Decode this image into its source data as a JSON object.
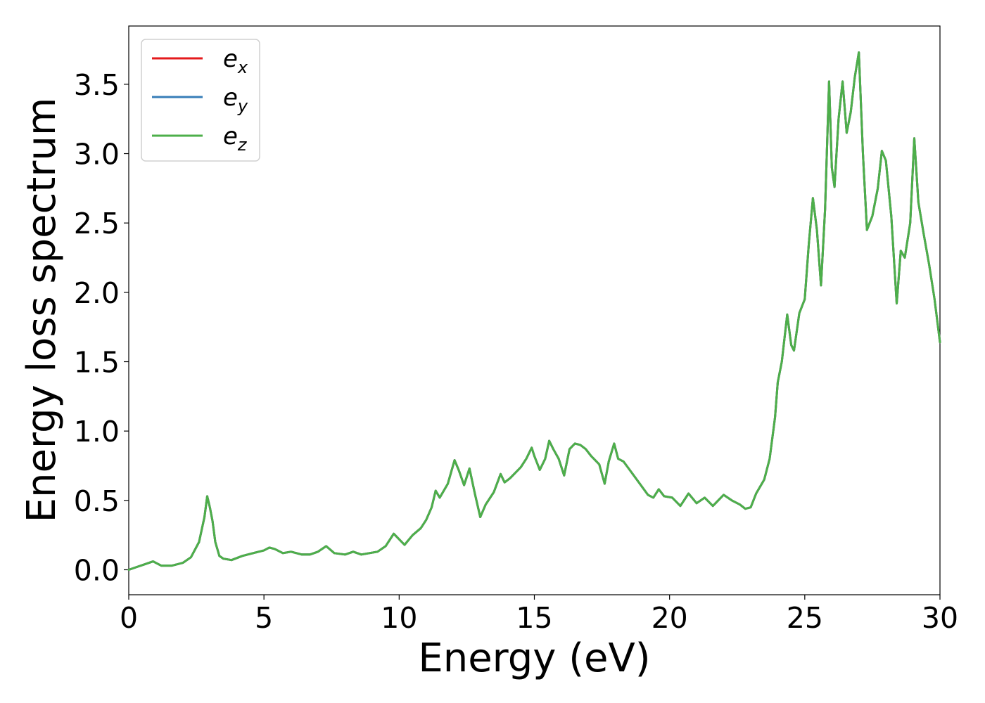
{
  "chart_data": {
    "type": "line",
    "title": "",
    "xlabel": "Energy (eV)",
    "ylabel": "Energy loss spectrum",
    "xlim": [
      0,
      30
    ],
    "ylim": [
      -0.18,
      3.92
    ],
    "x_ticks": [
      "0",
      "5",
      "10",
      "15",
      "20",
      "25",
      "30"
    ],
    "x_tick_values": [
      0,
      5,
      10,
      15,
      20,
      25,
      30
    ],
    "y_ticks": [
      "0.0",
      "0.5",
      "1.0",
      "1.5",
      "2.0",
      "2.5",
      "3.0",
      "3.5"
    ],
    "y_tick_values": [
      0,
      0.5,
      1.0,
      1.5,
      2.0,
      2.5,
      3.0,
      3.5
    ],
    "grid": false,
    "legend_position": "top-left",
    "series": [
      {
        "name": "e_x",
        "label_base": "e",
        "label_sub": "x",
        "color": "#e41a1c"
      },
      {
        "name": "e_y",
        "label_base": "e",
        "label_sub": "y",
        "color": "#377eb8"
      },
      {
        "name": "e_z",
        "label_base": "e",
        "label_sub": "z",
        "color": "#4daf4a"
      }
    ],
    "x": [
      0,
      0.3,
      0.6,
      0.9,
      1.0,
      1.2,
      1.6,
      2.0,
      2.3,
      2.6,
      2.8,
      2.9,
      3.0,
      3.1,
      3.2,
      3.35,
      3.5,
      3.8,
      4.2,
      4.6,
      5.0,
      5.2,
      5.4,
      5.7,
      6.0,
      6.2,
      6.4,
      6.7,
      7.0,
      7.3,
      7.6,
      8.0,
      8.3,
      8.6,
      8.9,
      9.2,
      9.5,
      9.8,
      10.2,
      10.5,
      10.8,
      11.0,
      11.2,
      11.35,
      11.5,
      11.8,
      12.05,
      12.2,
      12.4,
      12.6,
      12.8,
      13.0,
      13.2,
      13.5,
      13.75,
      13.9,
      14.1,
      14.3,
      14.5,
      14.7,
      14.9,
      15.0,
      15.2,
      15.4,
      15.55,
      15.7,
      15.9,
      16.1,
      16.3,
      16.5,
      16.7,
      16.9,
      17.1,
      17.4,
      17.6,
      17.75,
      17.95,
      18.1,
      18.3,
      18.6,
      18.9,
      19.2,
      19.4,
      19.6,
      19.8,
      20.1,
      20.4,
      20.7,
      21.0,
      21.3,
      21.6,
      22.0,
      22.3,
      22.6,
      22.8,
      23.0,
      23.2,
      23.5,
      23.7,
      23.9,
      24.0,
      24.15,
      24.35,
      24.5,
      24.6,
      24.8,
      25.0,
      25.15,
      25.3,
      25.45,
      25.6,
      25.75,
      25.9,
      26.0,
      26.1,
      26.25,
      26.4,
      26.55,
      26.7,
      26.85,
      27.0,
      27.15,
      27.3,
      27.5,
      27.7,
      27.85,
      28.0,
      28.2,
      28.4,
      28.55,
      28.7,
      28.9,
      29.05,
      29.2,
      29.4,
      29.6,
      29.8,
      30.0
    ],
    "y": [
      0.0,
      0.02,
      0.04,
      0.06,
      0.05,
      0.03,
      0.03,
      0.05,
      0.09,
      0.2,
      0.38,
      0.53,
      0.45,
      0.35,
      0.2,
      0.1,
      0.08,
      0.07,
      0.1,
      0.12,
      0.14,
      0.16,
      0.15,
      0.12,
      0.13,
      0.12,
      0.11,
      0.11,
      0.13,
      0.17,
      0.12,
      0.11,
      0.13,
      0.11,
      0.12,
      0.13,
      0.17,
      0.26,
      0.18,
      0.25,
      0.3,
      0.36,
      0.45,
      0.57,
      0.52,
      0.62,
      0.79,
      0.72,
      0.61,
      0.73,
      0.55,
      0.38,
      0.47,
      0.56,
      0.69,
      0.63,
      0.66,
      0.7,
      0.74,
      0.8,
      0.88,
      0.82,
      0.72,
      0.8,
      0.93,
      0.87,
      0.8,
      0.68,
      0.87,
      0.91,
      0.9,
      0.87,
      0.82,
      0.76,
      0.62,
      0.78,
      0.91,
      0.8,
      0.78,
      0.7,
      0.62,
      0.54,
      0.52,
      0.58,
      0.53,
      0.52,
      0.46,
      0.55,
      0.48,
      0.52,
      0.46,
      0.54,
      0.5,
      0.47,
      0.44,
      0.45,
      0.55,
      0.65,
      0.8,
      1.1,
      1.35,
      1.5,
      1.84,
      1.62,
      1.58,
      1.85,
      1.95,
      2.35,
      2.68,
      2.45,
      2.05,
      2.6,
      3.52,
      2.9,
      2.76,
      3.25,
      3.52,
      3.15,
      3.3,
      3.55,
      3.73,
      3.0,
      2.45,
      2.55,
      2.75,
      3.02,
      2.95,
      2.55,
      1.92,
      2.3,
      2.25,
      2.5,
      3.11,
      2.65,
      2.42,
      2.2,
      1.95,
      1.64
    ]
  }
}
